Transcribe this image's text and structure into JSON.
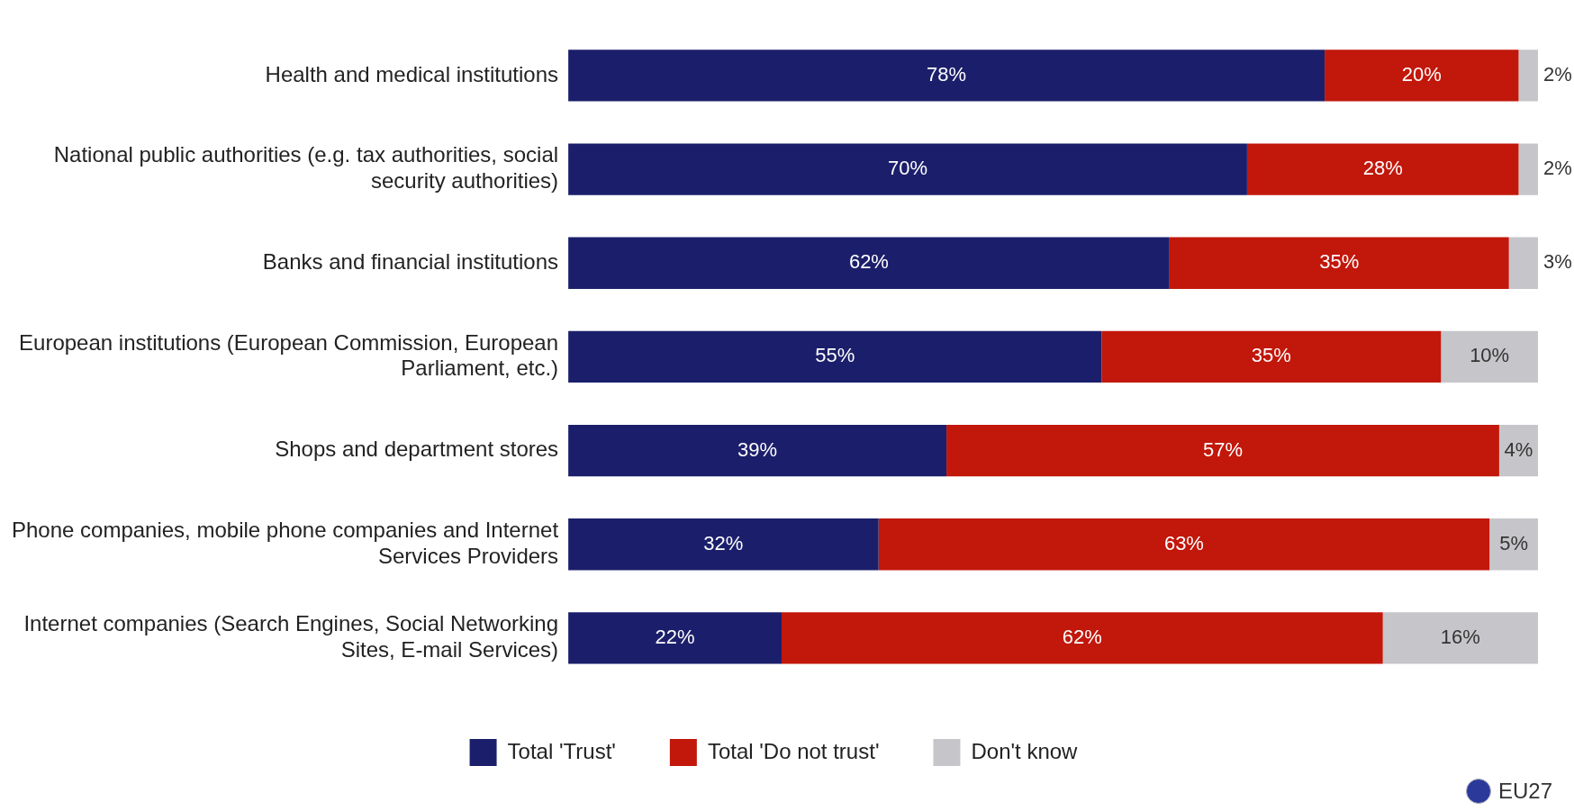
{
  "chart_data": {
    "type": "bar",
    "orientation": "horizontal",
    "stacked": true,
    "categories": [
      "Health and medical institutions",
      "National public authorities (e.g. tax authorities, social security authorities)",
      "Banks and financial institutions",
      "European institutions (European Commission, European Parliament, etc.)",
      "Shops and department stores",
      "Phone companies, mobile phone companies and Internet Services Providers",
      "Internet companies (Search Engines, Social Networking Sites, E-mail Services)"
    ],
    "series": [
      {
        "name": "Total 'Trust'",
        "color": "#1b1f6b",
        "values": [
          78,
          70,
          62,
          55,
          39,
          32,
          22
        ],
        "value_labels": [
          "78%",
          "70%",
          "62%",
          "55%",
          "39%",
          "32%",
          "22%"
        ]
      },
      {
        "name": "Total 'Do not trust'",
        "color": "#c2170b",
        "values": [
          20,
          28,
          35,
          35,
          57,
          63,
          62
        ],
        "value_labels": [
          "20%",
          "28%",
          "35%",
          "35%",
          "57%",
          "63%",
          "62%"
        ]
      },
      {
        "name": "Don't know",
        "color": "#c6c6ca",
        "values": [
          2,
          2,
          3,
          10,
          4,
          5,
          16
        ],
        "value_labels": [
          "2%",
          "2%",
          "3%",
          "10%",
          "4%",
          "5%",
          "16%"
        ]
      }
    ],
    "xlim": [
      0,
      100
    ],
    "tick_labels": "y",
    "grid": false,
    "legend": "bottom",
    "annotations": [
      "EU27"
    ]
  }
}
